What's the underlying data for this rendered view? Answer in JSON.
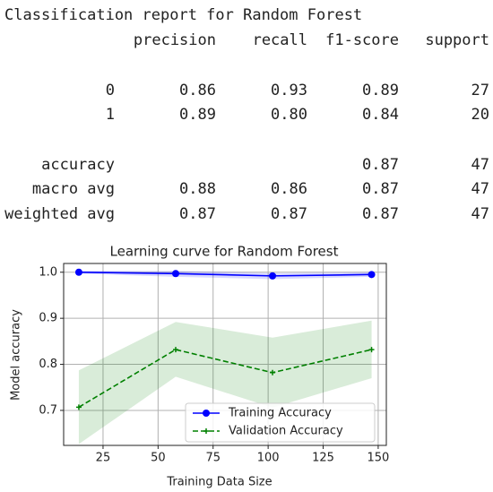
{
  "report": {
    "title": "Classification report for Random Forest",
    "header": [
      "precision",
      "recall",
      "f1-score",
      "support"
    ],
    "rows": [
      [
        "0",
        "0.86",
        "0.93",
        "0.89",
        "27"
      ],
      [
        "1",
        "0.89",
        "0.80",
        "0.84",
        "20"
      ],
      [
        "accuracy",
        null,
        null,
        "0.87",
        "47"
      ],
      [
        "macro avg",
        "0.88",
        "0.86",
        "0.87",
        "47"
      ],
      [
        "weighted avg",
        "0.87",
        "0.87",
        "0.87",
        "47"
      ]
    ]
  },
  "chart_data": {
    "type": "line",
    "title": "Learning curve for Random Forest",
    "x_label": "Training Data Size",
    "y_label": "Model accuracy",
    "x": [
      14,
      58,
      102,
      147
    ],
    "series": [
      {
        "name": "Training Accuracy",
        "color": "#0000ff",
        "marker": "circle",
        "dash": "solid",
        "values": [
          1.0,
          0.997,
          0.992,
          0.995
        ],
        "lower": [
          0.997,
          0.99,
          0.985,
          0.99
        ],
        "upper": [
          1.003,
          1.003,
          0.998,
          1.0
        ]
      },
      {
        "name": "Validation Accuracy",
        "color": "#008000",
        "marker": "plus",
        "dash": "dashed",
        "values": [
          0.707,
          0.832,
          0.782,
          0.832
        ],
        "lower": [
          0.627,
          0.773,
          0.706,
          0.77
        ],
        "upper": [
          0.787,
          0.892,
          0.858,
          0.895
        ]
      }
    ],
    "xlim": [
      7.1,
      153.7
    ],
    "ylim": [
      0.624,
      1.019
    ],
    "xticks": [
      25,
      50,
      75,
      100,
      125,
      150
    ],
    "yticks": [
      0.7,
      0.8,
      0.9,
      {
        "value": 1,
        "label": "1.0"
      }
    ],
    "grid": true,
    "legend": "lower right"
  }
}
